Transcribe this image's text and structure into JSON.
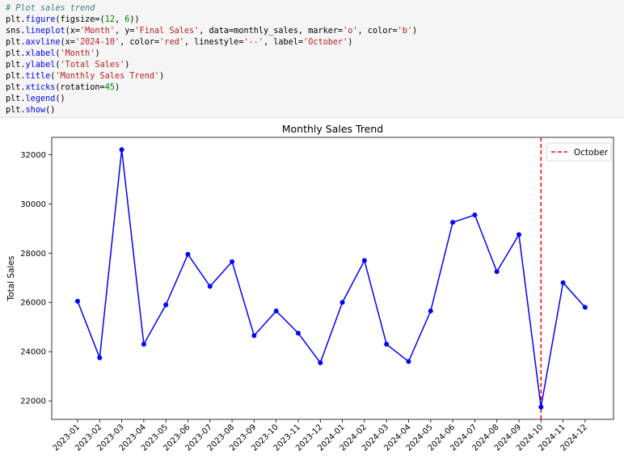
{
  "code": {
    "lines": [
      [
        {
          "t": "# Plot sales trend",
          "c": "tok-comment"
        }
      ],
      [
        {
          "t": "plt.",
          "c": ""
        },
        {
          "t": "figure",
          "c": "tok-fn"
        },
        {
          "t": "(figsize=(",
          "c": ""
        },
        {
          "t": "12",
          "c": "tok-num"
        },
        {
          "t": ", ",
          "c": ""
        },
        {
          "t": "6",
          "c": "tok-num"
        },
        {
          "t": "))",
          "c": ""
        }
      ],
      [
        {
          "t": "sns.",
          "c": ""
        },
        {
          "t": "lineplot",
          "c": "tok-fn"
        },
        {
          "t": "(x=",
          "c": ""
        },
        {
          "t": "'Month'",
          "c": "tok-str"
        },
        {
          "t": ", y=",
          "c": ""
        },
        {
          "t": "'Final Sales'",
          "c": "tok-str"
        },
        {
          "t": ", data=monthly_sales, marker=",
          "c": ""
        },
        {
          "t": "'o'",
          "c": "tok-str"
        },
        {
          "t": ", color=",
          "c": ""
        },
        {
          "t": "'b'",
          "c": "tok-str"
        },
        {
          "t": ")",
          "c": ""
        }
      ],
      [
        {
          "t": "plt.",
          "c": ""
        },
        {
          "t": "axvline",
          "c": "tok-fn"
        },
        {
          "t": "(x=",
          "c": ""
        },
        {
          "t": "'2024-10'",
          "c": "tok-str"
        },
        {
          "t": ", color=",
          "c": ""
        },
        {
          "t": "'red'",
          "c": "tok-str"
        },
        {
          "t": ", linestyle=",
          "c": ""
        },
        {
          "t": "'--'",
          "c": "tok-str"
        },
        {
          "t": ", label=",
          "c": ""
        },
        {
          "t": "'October'",
          "c": "tok-str"
        },
        {
          "t": ")",
          "c": ""
        }
      ],
      [
        {
          "t": "plt.",
          "c": ""
        },
        {
          "t": "xlabel",
          "c": "tok-fn"
        },
        {
          "t": "(",
          "c": ""
        },
        {
          "t": "'Month'",
          "c": "tok-str"
        },
        {
          "t": ")",
          "c": ""
        }
      ],
      [
        {
          "t": "plt.",
          "c": ""
        },
        {
          "t": "ylabel",
          "c": "tok-fn"
        },
        {
          "t": "(",
          "c": ""
        },
        {
          "t": "'Total Sales'",
          "c": "tok-str"
        },
        {
          "t": ")",
          "c": ""
        }
      ],
      [
        {
          "t": "plt.",
          "c": ""
        },
        {
          "t": "title",
          "c": "tok-fn"
        },
        {
          "t": "(",
          "c": ""
        },
        {
          "t": "'Monthly Sales Trend'",
          "c": "tok-str"
        },
        {
          "t": ")",
          "c": ""
        }
      ],
      [
        {
          "t": "plt.",
          "c": ""
        },
        {
          "t": "xticks",
          "c": "tok-fn"
        },
        {
          "t": "(rotation=",
          "c": ""
        },
        {
          "t": "45",
          "c": "tok-num"
        },
        {
          "t": ")",
          "c": ""
        }
      ],
      [
        {
          "t": "plt.",
          "c": ""
        },
        {
          "t": "legend",
          "c": "tok-fn"
        },
        {
          "t": "()",
          "c": ""
        }
      ],
      [
        {
          "t": "plt.",
          "c": ""
        },
        {
          "t": "show",
          "c": "tok-fn"
        },
        {
          "t": "()",
          "c": ""
        }
      ]
    ]
  },
  "chart_data": {
    "type": "line",
    "title": "Monthly Sales Trend",
    "xlabel": "",
    "ylabel": "Total Sales",
    "categories": [
      "2023-01",
      "2023-02",
      "2023-03",
      "2023-04",
      "2023-05",
      "2023-06",
      "2023-07",
      "2023-08",
      "2023-09",
      "2023-10",
      "2023-11",
      "2023-12",
      "2024-01",
      "2024-02",
      "2024-03",
      "2024-04",
      "2024-05",
      "2024-06",
      "2024-07",
      "2024-08",
      "2024-09",
      "2024-10",
      "2024-11",
      "2024-12"
    ],
    "series": [
      {
        "values": [
          26050,
          23750,
          32200,
          24300,
          25900,
          27950,
          26650,
          27650,
          24650,
          25650,
          24750,
          23550,
          26000,
          27700,
          24300,
          23600,
          25650,
          29250,
          29550,
          27250,
          28750,
          21750,
          26800,
          25800
        ],
        "color": "#0000ff",
        "marker": "o"
      }
    ],
    "vline": {
      "x": "2024-10",
      "color": "#ff0000",
      "linestyle": "--",
      "label": "October"
    },
    "yticks": [
      22000,
      24000,
      26000,
      28000,
      30000,
      32000
    ],
    "ylim": [
      21250,
      32700
    ],
    "grid": false,
    "legend": {
      "position": "top-right",
      "entries": [
        "October"
      ]
    },
    "xtick_rotation": 45
  }
}
